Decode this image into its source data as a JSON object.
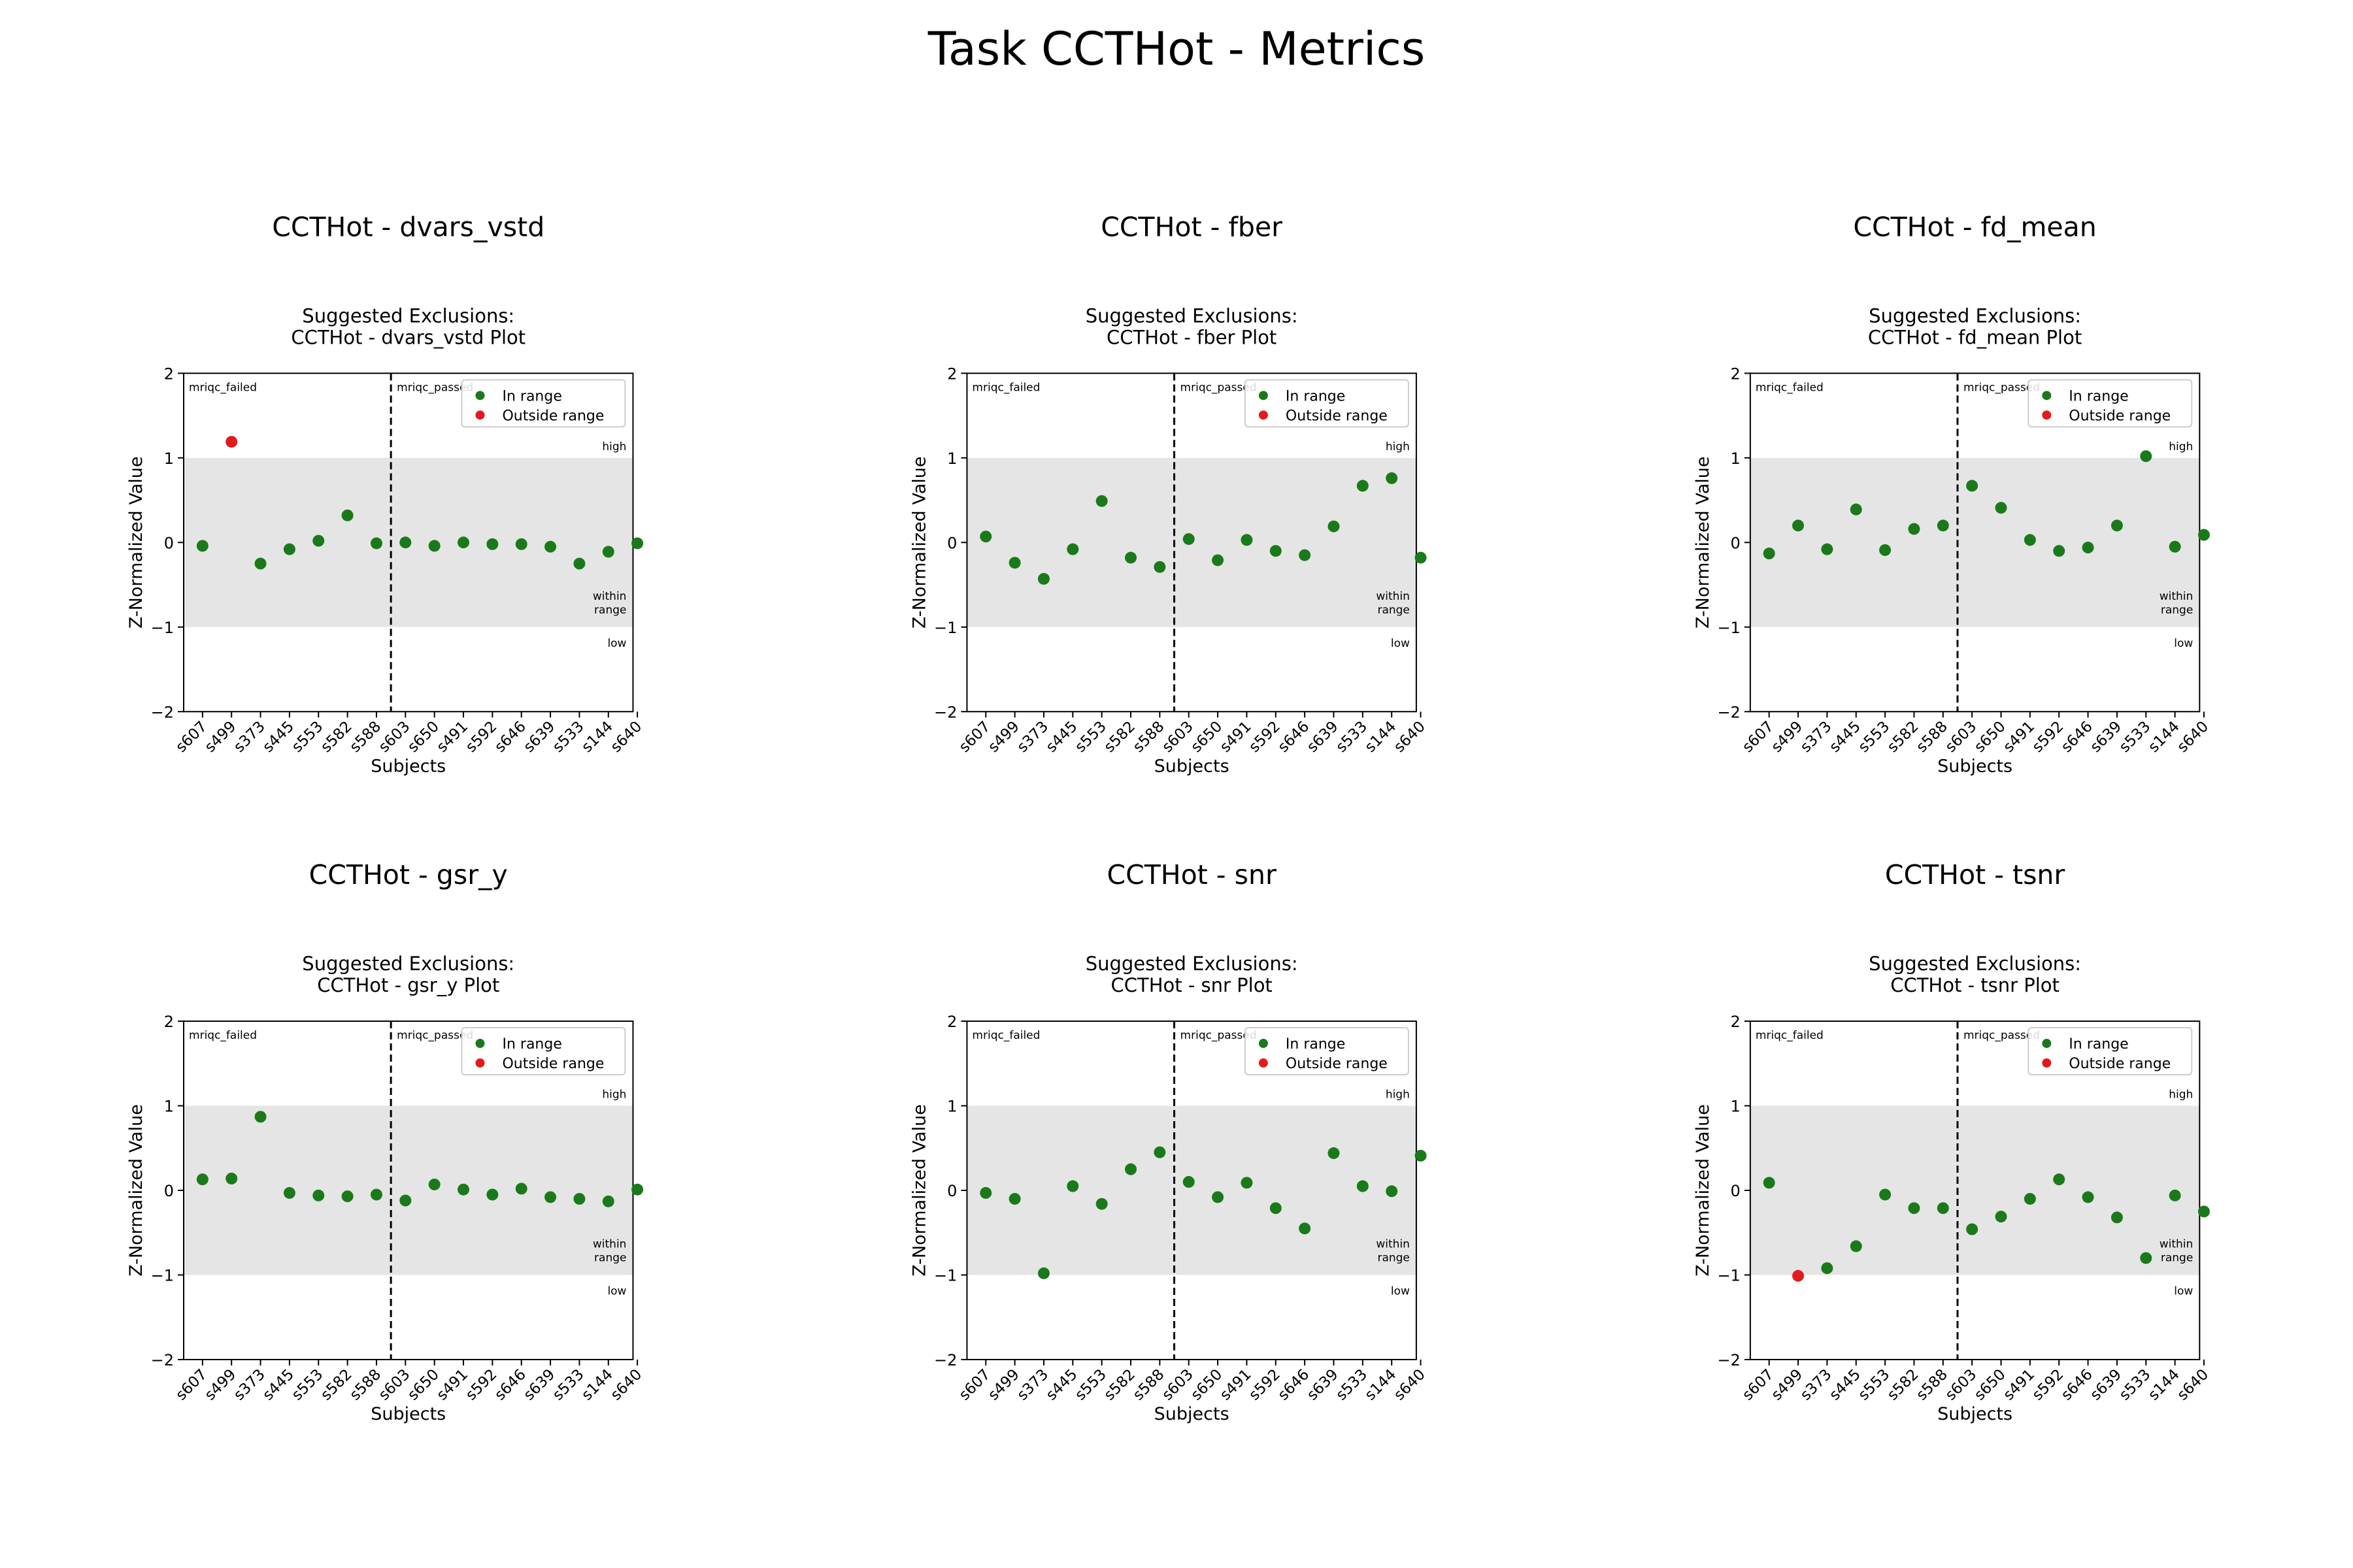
{
  "figure": {
    "title": "Task CCTHot - Metrics"
  },
  "colors": {
    "in_range": "#1a7a1a",
    "outside_range": "#e31a1c",
    "band": "#e5e5e5"
  },
  "chart_data": [
    {
      "type": "scatter",
      "title": "CCTHot - dvars_vstd",
      "subtitle": [
        "Suggested Exclusions:",
        "CCTHot - dvars_vstd Plot"
      ],
      "xlabel": "Subjects",
      "ylabel": "Z-Normalized Value",
      "ylim": [
        -2,
        2
      ],
      "yticks": [
        "2",
        "1",
        "0",
        "−1",
        "−2"
      ],
      "band": [
        -1,
        1
      ],
      "band_labels": {
        "high": "high",
        "within": [
          "within",
          "range"
        ],
        "low": "low"
      },
      "group_labels": {
        "failed": "mriqc_failed",
        "passed": "mriqc_passed"
      },
      "legend": {
        "position": "top-right",
        "in_range": "In range",
        "outside_range": "Outside range"
      },
      "categories": [
        "s607",
        "s499",
        "s373",
        "s445",
        "s553",
        "s582",
        "s588",
        "s603",
        "s650",
        "s491",
        "s592",
        "s646",
        "s639",
        "s533",
        "s144",
        "s640"
      ],
      "values": [
        -0.04,
        1.19,
        -0.25,
        -0.08,
        0.02,
        0.32,
        -0.01,
        0.0,
        -0.04,
        0.0,
        -0.02,
        -0.02,
        -0.05,
        -0.25,
        -0.11,
        -0.01
      ],
      "status": [
        "in",
        "out",
        "in",
        "in",
        "in",
        "in",
        "in",
        "in",
        "in",
        "in",
        "in",
        "in",
        "in",
        "in",
        "in",
        "in"
      ]
    },
    {
      "type": "scatter",
      "title": "CCTHot - fber",
      "subtitle": [
        "Suggested Exclusions:",
        "CCTHot - fber Plot"
      ],
      "xlabel": "Subjects",
      "ylabel": "Z-Normalized Value",
      "ylim": [
        -2,
        2
      ],
      "yticks": [
        "2",
        "1",
        "0",
        "−1",
        "−2"
      ],
      "band": [
        -1,
        1
      ],
      "band_labels": {
        "high": "high",
        "within": [
          "within",
          "range"
        ],
        "low": "low"
      },
      "group_labels": {
        "failed": "mriqc_failed",
        "passed": "mriqc_passed"
      },
      "legend": {
        "position": "top-right",
        "in_range": "In range",
        "outside_range": "Outside range"
      },
      "categories": [
        "s607",
        "s499",
        "s373",
        "s445",
        "s553",
        "s582",
        "s588",
        "s603",
        "s650",
        "s491",
        "s592",
        "s646",
        "s639",
        "s533",
        "s144",
        "s640"
      ],
      "values": [
        0.07,
        -0.24,
        -0.43,
        -0.08,
        0.49,
        -0.18,
        -0.29,
        0.04,
        -0.21,
        0.03,
        -0.1,
        -0.15,
        0.19,
        0.67,
        0.76,
        -0.18
      ],
      "status": [
        "in",
        "in",
        "in",
        "in",
        "in",
        "in",
        "in",
        "in",
        "in",
        "in",
        "in",
        "in",
        "in",
        "in",
        "in",
        "in"
      ]
    },
    {
      "type": "scatter",
      "title": "CCTHot - fd_mean",
      "subtitle": [
        "Suggested Exclusions:",
        "CCTHot - fd_mean Plot"
      ],
      "xlabel": "Subjects",
      "ylabel": "Z-Normalized Value",
      "ylim": [
        -2,
        2
      ],
      "yticks": [
        "2",
        "1",
        "0",
        "−1",
        "−2"
      ],
      "band": [
        -1,
        1
      ],
      "band_labels": {
        "high": "high",
        "within": [
          "within",
          "range"
        ],
        "low": "low"
      },
      "group_labels": {
        "failed": "mriqc_failed",
        "passed": "mriqc_passed"
      },
      "legend": {
        "position": "top-right",
        "in_range": "In range",
        "outside_range": "Outside range"
      },
      "categories": [
        "s607",
        "s499",
        "s373",
        "s445",
        "s553",
        "s582",
        "s588",
        "s603",
        "s650",
        "s491",
        "s592",
        "s646",
        "s639",
        "s533",
        "s144",
        "s640"
      ],
      "values": [
        -0.13,
        0.2,
        -0.08,
        0.39,
        -0.09,
        0.16,
        0.2,
        0.67,
        0.41,
        0.03,
        -0.1,
        -0.06,
        0.2,
        1.02,
        -0.05,
        0.09
      ],
      "status": [
        "in",
        "in",
        "in",
        "in",
        "in",
        "in",
        "in",
        "in",
        "in",
        "in",
        "in",
        "in",
        "in",
        "in",
        "in",
        "in"
      ]
    },
    {
      "type": "scatter",
      "title": "CCTHot - gsr_y",
      "subtitle": [
        "Suggested Exclusions:",
        "CCTHot - gsr_y Plot"
      ],
      "xlabel": "Subjects",
      "ylabel": "Z-Normalized Value",
      "ylim": [
        -2,
        2
      ],
      "yticks": [
        "2",
        "1",
        "0",
        "−1",
        "−2"
      ],
      "band": [
        -1,
        1
      ],
      "band_labels": {
        "high": "high",
        "within": [
          "within",
          "range"
        ],
        "low": "low"
      },
      "group_labels": {
        "failed": "mriqc_failed",
        "passed": "mriqc_passed"
      },
      "legend": {
        "position": "top-right",
        "in_range": "In range",
        "outside_range": "Outside range"
      },
      "categories": [
        "s607",
        "s499",
        "s373",
        "s445",
        "s553",
        "s582",
        "s588",
        "s603",
        "s650",
        "s491",
        "s592",
        "s646",
        "s639",
        "s533",
        "s144",
        "s640"
      ],
      "values": [
        0.13,
        0.14,
        0.87,
        -0.03,
        -0.06,
        -0.07,
        -0.05,
        -0.12,
        0.07,
        0.01,
        -0.05,
        0.02,
        -0.08,
        -0.1,
        -0.13,
        0.01
      ],
      "status": [
        "in",
        "in",
        "in",
        "in",
        "in",
        "in",
        "in",
        "in",
        "in",
        "in",
        "in",
        "in",
        "in",
        "in",
        "in",
        "in"
      ]
    },
    {
      "type": "scatter",
      "title": "CCTHot - snr",
      "subtitle": [
        "Suggested Exclusions:",
        "CCTHot - snr Plot"
      ],
      "xlabel": "Subjects",
      "ylabel": "Z-Normalized Value",
      "ylim": [
        -2,
        2
      ],
      "yticks": [
        "2",
        "1",
        "0",
        "−1",
        "−2"
      ],
      "band": [
        -1,
        1
      ],
      "band_labels": {
        "high": "high",
        "within": [
          "within",
          "range"
        ],
        "low": "low"
      },
      "group_labels": {
        "failed": "mriqc_failed",
        "passed": "mriqc_passed"
      },
      "legend": {
        "position": "top-right",
        "in_range": "In range",
        "outside_range": "Outside range"
      },
      "categories": [
        "s607",
        "s499",
        "s373",
        "s445",
        "s553",
        "s582",
        "s588",
        "s603",
        "s650",
        "s491",
        "s592",
        "s646",
        "s639",
        "s533",
        "s144",
        "s640"
      ],
      "values": [
        -0.03,
        -0.1,
        -0.98,
        0.05,
        -0.16,
        0.25,
        0.45,
        0.1,
        -0.08,
        0.09,
        -0.21,
        -0.45,
        0.44,
        0.05,
        -0.01,
        0.41
      ],
      "status": [
        "in",
        "in",
        "in",
        "in",
        "in",
        "in",
        "in",
        "in",
        "in",
        "in",
        "in",
        "in",
        "in",
        "in",
        "in",
        "in"
      ]
    },
    {
      "type": "scatter",
      "title": "CCTHot - tsnr",
      "subtitle": [
        "Suggested Exclusions:",
        "CCTHot - tsnr Plot"
      ],
      "xlabel": "Subjects",
      "ylabel": "Z-Normalized Value",
      "ylim": [
        -2,
        2
      ],
      "yticks": [
        "2",
        "1",
        "0",
        "−1",
        "−2"
      ],
      "band": [
        -1,
        1
      ],
      "band_labels": {
        "high": "high",
        "within": [
          "within",
          "range"
        ],
        "low": "low"
      },
      "group_labels": {
        "failed": "mriqc_failed",
        "passed": "mriqc_passed"
      },
      "legend": {
        "position": "top-right",
        "in_range": "In range",
        "outside_range": "Outside range"
      },
      "categories": [
        "s607",
        "s499",
        "s373",
        "s445",
        "s553",
        "s582",
        "s588",
        "s603",
        "s650",
        "s491",
        "s592",
        "s646",
        "s639",
        "s533",
        "s144",
        "s640"
      ],
      "values": [
        0.09,
        -1.01,
        -0.92,
        -0.66,
        -0.05,
        -0.21,
        -0.21,
        -0.46,
        -0.31,
        -0.1,
        0.13,
        -0.08,
        -0.32,
        -0.8,
        -0.06,
        -0.25
      ],
      "status": [
        "in",
        "out",
        "in",
        "in",
        "in",
        "in",
        "in",
        "in",
        "in",
        "in",
        "in",
        "in",
        "in",
        "in",
        "in",
        "in"
      ]
    }
  ]
}
